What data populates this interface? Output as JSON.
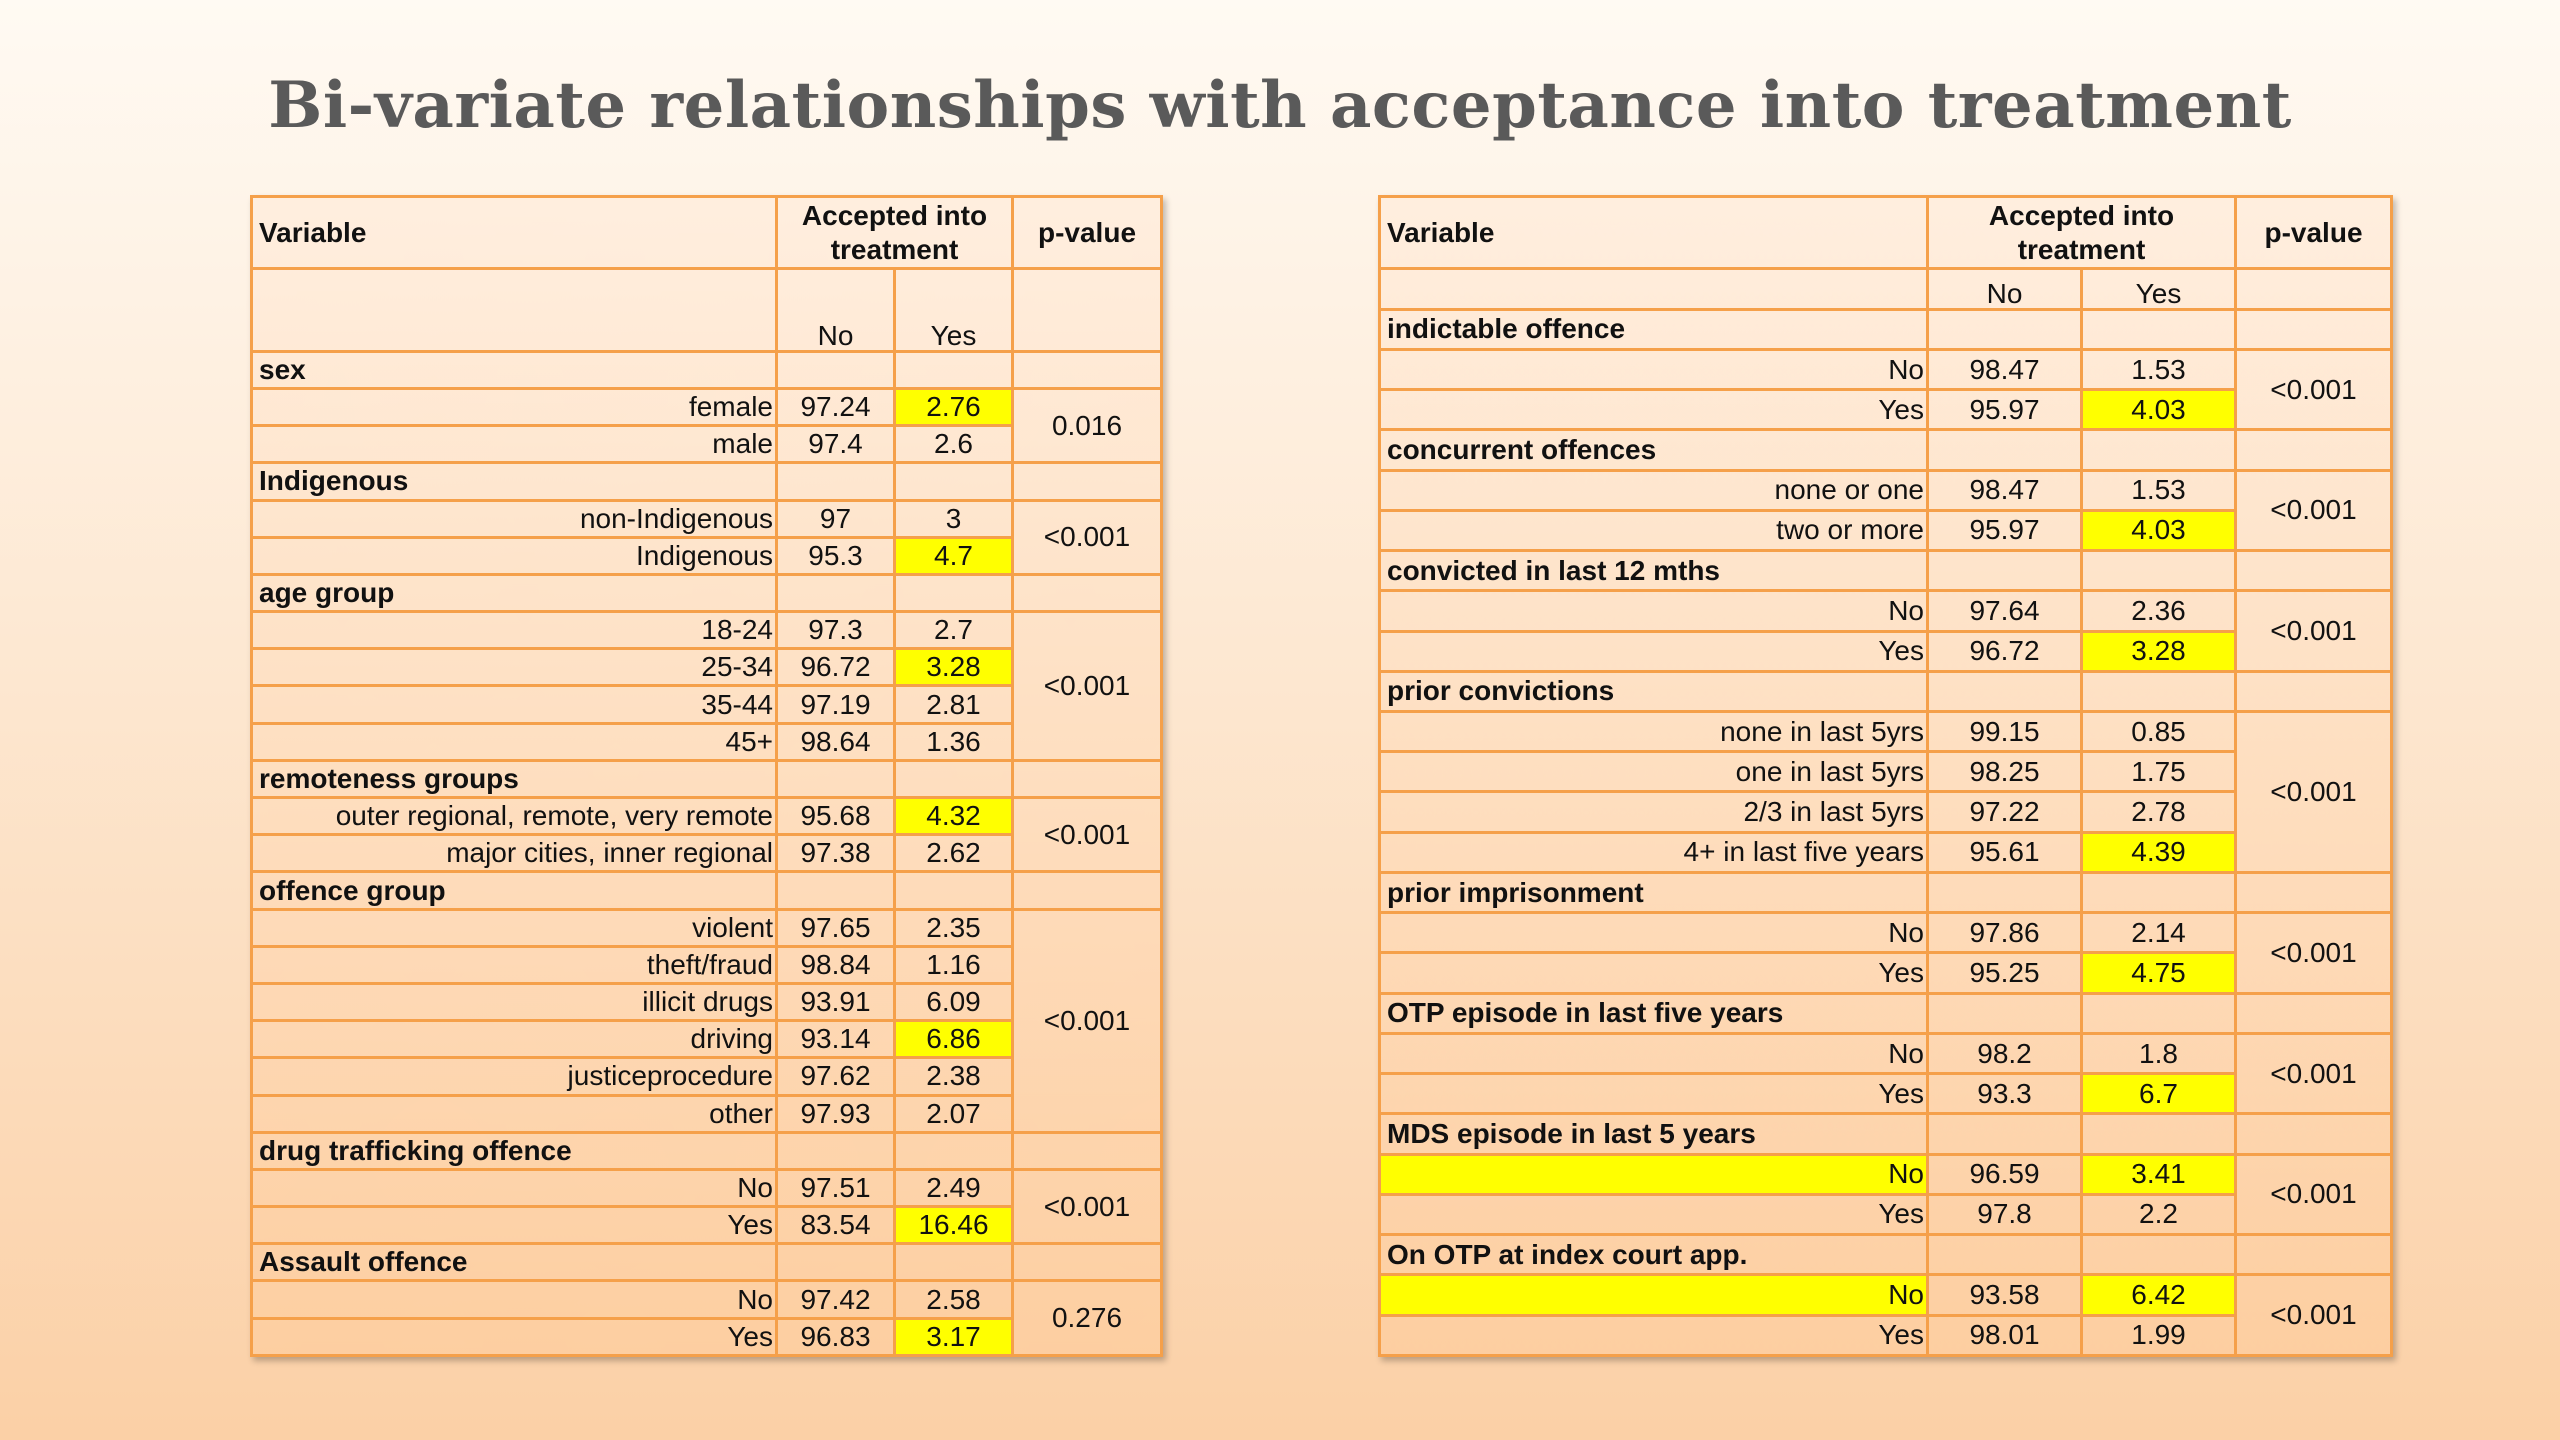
{
  "title": "Bi-variate relationships with acceptance into treatment",
  "headers": {
    "variable": "Variable",
    "accepted": "Accepted into treatment",
    "pvalue": "p-value",
    "no": "No",
    "yes": "Yes"
  },
  "left_table": {
    "groups": [
      {
        "name": "sex",
        "p": "0.016",
        "rows": [
          {
            "level": "female",
            "no": "97.24",
            "yes": "2.76",
            "highlight_yes": true,
            "highlight_level": false
          },
          {
            "level": "male",
            "no": "97.4",
            "yes": "2.6",
            "highlight_yes": false,
            "highlight_level": false
          }
        ]
      },
      {
        "name": "Indigenous",
        "p": "<0.001",
        "rows": [
          {
            "level": "non-Indigenous",
            "no": "97",
            "yes": "3",
            "highlight_yes": false,
            "highlight_level": false
          },
          {
            "level": "Indigenous",
            "no": "95.3",
            "yes": "4.7",
            "highlight_yes": true,
            "highlight_level": false
          }
        ]
      },
      {
        "name": "age group",
        "p": "<0.001",
        "rows": [
          {
            "level": "18-24",
            "no": "97.3",
            "yes": "2.7",
            "highlight_yes": false,
            "highlight_level": false
          },
          {
            "level": "25-34",
            "no": "96.72",
            "yes": "3.28",
            "highlight_yes": true,
            "highlight_level": false
          },
          {
            "level": "35-44",
            "no": "97.19",
            "yes": "2.81",
            "highlight_yes": false,
            "highlight_level": false
          },
          {
            "level": "45+",
            "no": "98.64",
            "yes": "1.36",
            "highlight_yes": false,
            "highlight_level": false
          }
        ]
      },
      {
        "name": "remoteness groups",
        "p": "<0.001",
        "rows": [
          {
            "level": "outer regional, remote, very remote",
            "no": "95.68",
            "yes": "4.32",
            "highlight_yes": true,
            "highlight_level": false
          },
          {
            "level": "major cities, inner regional",
            "no": "97.38",
            "yes": "2.62",
            "highlight_yes": false,
            "highlight_level": false
          }
        ]
      },
      {
        "name": "offence group",
        "p": "<0.001",
        "rows": [
          {
            "level": "violent",
            "no": "97.65",
            "yes": "2.35",
            "highlight_yes": false,
            "highlight_level": false
          },
          {
            "level": "theft/fraud",
            "no": "98.84",
            "yes": "1.16",
            "highlight_yes": false,
            "highlight_level": false
          },
          {
            "level": "illicit drugs",
            "no": "93.91",
            "yes": "6.09",
            "highlight_yes": false,
            "highlight_level": false
          },
          {
            "level": "driving",
            "no": "93.14",
            "yes": "6.86",
            "highlight_yes": true,
            "highlight_level": false
          },
          {
            "level": "justiceprocedure",
            "no": "97.62",
            "yes": "2.38",
            "highlight_yes": false,
            "highlight_level": false
          },
          {
            "level": "other",
            "no": "97.93",
            "yes": "2.07",
            "highlight_yes": false,
            "highlight_level": false
          }
        ]
      },
      {
        "name": "drug trafficking offence",
        "p": "<0.001",
        "rows": [
          {
            "level": "No",
            "no": "97.51",
            "yes": "2.49",
            "highlight_yes": false,
            "highlight_level": false
          },
          {
            "level": "Yes",
            "no": "83.54",
            "yes": "16.46",
            "highlight_yes": true,
            "highlight_level": false
          }
        ]
      },
      {
        "name": "Assault offence",
        "p": "0.276",
        "rows": [
          {
            "level": "No",
            "no": "97.42",
            "yes": "2.58",
            "highlight_yes": false,
            "highlight_level": false
          },
          {
            "level": "Yes",
            "no": "96.83",
            "yes": "3.17",
            "highlight_yes": true,
            "highlight_level": false
          }
        ]
      }
    ]
  },
  "right_table": {
    "groups": [
      {
        "name": "indictable offence",
        "p": "<0.001",
        "rows": [
          {
            "level": "No",
            "no": "98.47",
            "yes": "1.53",
            "highlight_yes": false,
            "highlight_level": false
          },
          {
            "level": "Yes",
            "no": "95.97",
            "yes": "4.03",
            "highlight_yes": true,
            "highlight_level": false
          }
        ]
      },
      {
        "name": "concurrent offences",
        "p": "<0.001",
        "rows": [
          {
            "level": "none or one",
            "no": "98.47",
            "yes": "1.53",
            "highlight_yes": false,
            "highlight_level": false
          },
          {
            "level": "two or more",
            "no": "95.97",
            "yes": "4.03",
            "highlight_yes": true,
            "highlight_level": false
          }
        ]
      },
      {
        "name": "convicted in last 12 mths",
        "p": "<0.001",
        "rows": [
          {
            "level": "No",
            "no": "97.64",
            "yes": "2.36",
            "highlight_yes": false,
            "highlight_level": false
          },
          {
            "level": "Yes",
            "no": "96.72",
            "yes": "3.28",
            "highlight_yes": true,
            "highlight_level": false
          }
        ]
      },
      {
        "name": "prior convictions",
        "p": "<0.001",
        "rows": [
          {
            "level": "none in last 5yrs",
            "no": "99.15",
            "yes": "0.85",
            "highlight_yes": false,
            "highlight_level": false
          },
          {
            "level": "one in last 5yrs",
            "no": "98.25",
            "yes": "1.75",
            "highlight_yes": false,
            "highlight_level": false
          },
          {
            "level": "2/3 in last 5yrs",
            "no": "97.22",
            "yes": "2.78",
            "highlight_yes": false,
            "highlight_level": false
          },
          {
            "level": "4+ in last five years",
            "no": "95.61",
            "yes": "4.39",
            "highlight_yes": true,
            "highlight_level": false
          }
        ]
      },
      {
        "name": "prior imprisonment",
        "p": "<0.001",
        "rows": [
          {
            "level": "No",
            "no": "97.86",
            "yes": "2.14",
            "highlight_yes": false,
            "highlight_level": false
          },
          {
            "level": "Yes",
            "no": "95.25",
            "yes": "4.75",
            "highlight_yes": true,
            "highlight_level": false
          }
        ]
      },
      {
        "name": "OTP episode in last five years",
        "p": "<0.001",
        "rows": [
          {
            "level": "No",
            "no": "98.2",
            "yes": "1.8",
            "highlight_yes": false,
            "highlight_level": false
          },
          {
            "level": "Yes",
            "no": "93.3",
            "yes": "6.7",
            "highlight_yes": true,
            "highlight_level": false
          }
        ]
      },
      {
        "name": "MDS episode in last 5 years",
        "p": "<0.001",
        "rows": [
          {
            "level": "No",
            "no": "96.59",
            "yes": "3.41",
            "highlight_yes": true,
            "highlight_level": true
          },
          {
            "level": "Yes",
            "no": "97.8",
            "yes": "2.2",
            "highlight_yes": false,
            "highlight_level": false
          }
        ]
      },
      {
        "name": "On OTP at index court app.",
        "p": "<0.001",
        "rows": [
          {
            "level": "No",
            "no": "93.58",
            "yes": "6.42",
            "highlight_yes": true,
            "highlight_level": true
          },
          {
            "level": "Yes",
            "no": "98.01",
            "yes": "1.99",
            "highlight_yes": false,
            "highlight_level": false
          }
        ]
      }
    ]
  },
  "colors": {
    "border": "#f5a04a",
    "highlight": "#ffff00",
    "title": "#5a5a5a"
  }
}
